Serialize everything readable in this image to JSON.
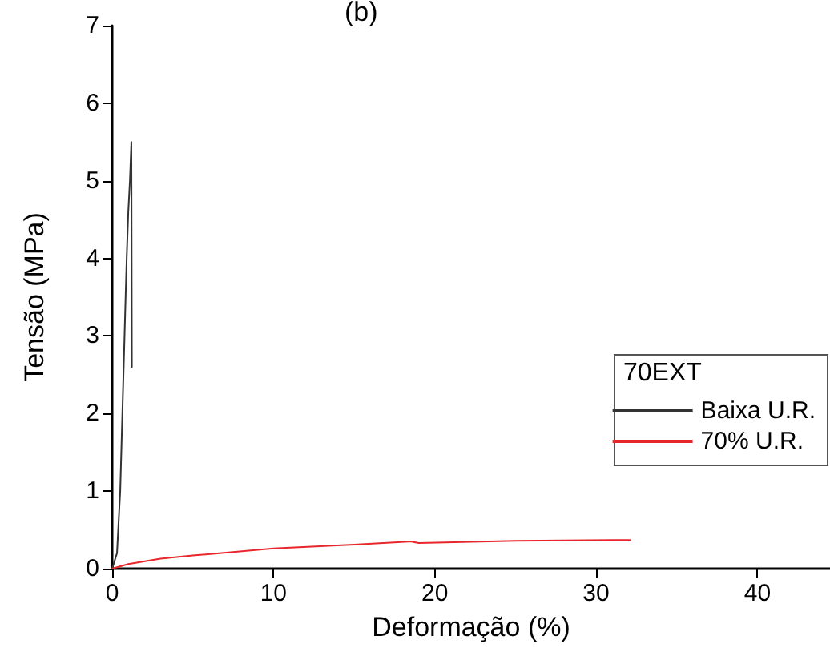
{
  "chart_data": {
    "type": "line",
    "title": "(b)",
    "xlabel": "Deformação (%)",
    "ylabel": "Tensão (MPa)",
    "legend_title": "70EXT",
    "legend": "right",
    "xlim": [
      0,
      44.5
    ],
    "xticks": [
      0,
      10,
      20,
      30,
      40
    ],
    "ylim": [
      0,
      7
    ],
    "yticks": [
      0,
      1,
      2,
      3,
      4,
      5,
      6,
      7
    ],
    "grid": false,
    "marker": "none",
    "line_style": "solid",
    "series": [
      {
        "name": "Baixa U.R.",
        "color": "#333333",
        "x": [
          0,
          0.3,
          0.5,
          0.7,
          0.9,
          1.0,
          1.1,
          1.19,
          1.22
        ],
        "values": [
          0,
          0.2,
          1,
          2.5,
          4,
          4.6,
          5.0,
          5.5,
          2.6
        ]
      },
      {
        "name": "70% U.R.",
        "color": "#e8262b",
        "x": [
          0,
          1,
          3,
          5,
          10,
          15,
          18.5,
          19,
          25,
          32.1
        ],
        "values": [
          0,
          0.06,
          0.13,
          0.17,
          0.26,
          0.31,
          0.35,
          0.33,
          0.36,
          0.37
        ]
      }
    ]
  }
}
